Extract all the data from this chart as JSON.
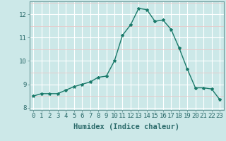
{
  "x": [
    0,
    1,
    2,
    3,
    4,
    5,
    6,
    7,
    8,
    9,
    10,
    11,
    12,
    13,
    14,
    15,
    16,
    17,
    18,
    19,
    20,
    21,
    22,
    23
  ],
  "y": [
    8.5,
    8.6,
    8.6,
    8.6,
    8.75,
    8.9,
    9.0,
    9.1,
    9.3,
    9.35,
    10.0,
    11.1,
    11.55,
    12.25,
    12.2,
    11.7,
    11.75,
    11.35,
    10.55,
    9.65,
    8.85,
    8.85,
    8.8,
    8.35
  ],
  "line_color": "#1a7a6a",
  "marker": "*",
  "marker_size": 3,
  "bg_color": "#cce8e8",
  "grid_major_color": "#ffffff",
  "grid_minor_color": "#e8c8c8",
  "xlabel": "Humidex (Indice chaleur)",
  "xlim": [
    -0.5,
    23.5
  ],
  "ylim": [
    7.9,
    12.55
  ],
  "yticks": [
    8,
    9,
    10,
    11,
    12
  ],
  "xticks": [
    0,
    1,
    2,
    3,
    4,
    5,
    6,
    7,
    8,
    9,
    10,
    11,
    12,
    13,
    14,
    15,
    16,
    17,
    18,
    19,
    20,
    21,
    22,
    23
  ],
  "tick_fontsize": 6.5,
  "xlabel_fontsize": 7.5,
  "tick_color": "#2a6a6a",
  "spine_color": "#6a9a9a"
}
